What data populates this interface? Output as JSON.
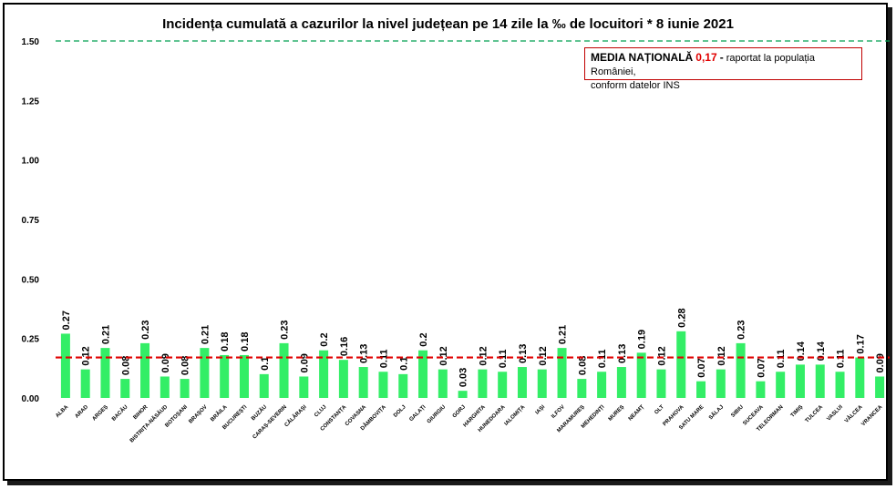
{
  "chart_data": {
    "type": "bar",
    "title": "Incidența cumulată a cazurilor la nivel județean pe 14 zile la ‰ de locuitori *  8 iunie 2021",
    "categories": [
      "ALBA",
      "ARAD",
      "ARGEȘ",
      "BACĂU",
      "BIHOR",
      "BISTRIȚA-NĂSĂUD",
      "BOTOȘANI",
      "BRAȘOV",
      "BRĂILA",
      "BUCUREȘTI",
      "BUZĂU",
      "CARAȘ-SEVERIN",
      "CĂLĂRAȘI",
      "CLUJ",
      "CONSTANȚA",
      "COVASNA",
      "DÂMBOVIȚA",
      "DOLJ",
      "GALAȚI",
      "GIURGIU",
      "GORJ",
      "HARGHITA",
      "HUNEDOARA",
      "IALOMIȚA",
      "IAȘI",
      "ILFOV",
      "MARAMUREȘ",
      "MEHEDINȚI",
      "MUREȘ",
      "NEAMȚ",
      "OLT",
      "PRAHOVA",
      "SATU MARE",
      "SĂLAJ",
      "SIBIU",
      "SUCEAVA",
      "TELEORMAN",
      "TIMIȘ",
      "TULCEA",
      "VASLUI",
      "VÂLCEA",
      "VRANCEA"
    ],
    "values": [
      0.27,
      0.12,
      0.21,
      0.08,
      0.23,
      0.09,
      0.08,
      0.21,
      0.18,
      0.18,
      0.1,
      0.23,
      0.09,
      0.2,
      0.16,
      0.13,
      0.11,
      0.1,
      0.2,
      0.12,
      0.03,
      0.12,
      0.11,
      0.13,
      0.12,
      0.21,
      0.08,
      0.11,
      0.13,
      0.19,
      0.12,
      0.28,
      0.07,
      0.12,
      0.23,
      0.07,
      0.11,
      0.14,
      0.14,
      0.11,
      0.17,
      0.09
    ],
    "value_labels": [
      "0.27",
      "0.12",
      "0.21",
      "0.08",
      "0.23",
      "0.09",
      "0.08",
      "0.21",
      "0.18",
      "0.18",
      "0.1",
      "0.23",
      "0.09",
      "0.2",
      "0.16",
      "0.13",
      "0.11",
      "0.1",
      "0.2",
      "0.12",
      "0.03",
      "0.12",
      "0.11",
      "0.13",
      "0.12",
      "0.21",
      "0.08",
      "0.11",
      "0.13",
      "0.19",
      "0.12",
      "0.28",
      "0.07",
      "0.12",
      "0.23",
      "0.07",
      "0.11",
      "0.14",
      "0.14",
      "0.11",
      "0.17",
      "0.09"
    ],
    "ylim": [
      0,
      1.5
    ],
    "yticks": [
      "0.00",
      "0.25",
      "0.50",
      "0.75",
      "1.00",
      "1.25",
      "1.50"
    ],
    "national_average": 0.17,
    "threshold": 1.5,
    "bar_color": "#33ee66",
    "average_line_color": "#e00000",
    "threshold_line_color": "#00a050"
  },
  "legend": {
    "label": "MEDIA NAȚIONALĂ",
    "value": "0,17",
    "dash": "-",
    "text1": "raportat la populația României,",
    "text2": "conform datelor INS"
  }
}
